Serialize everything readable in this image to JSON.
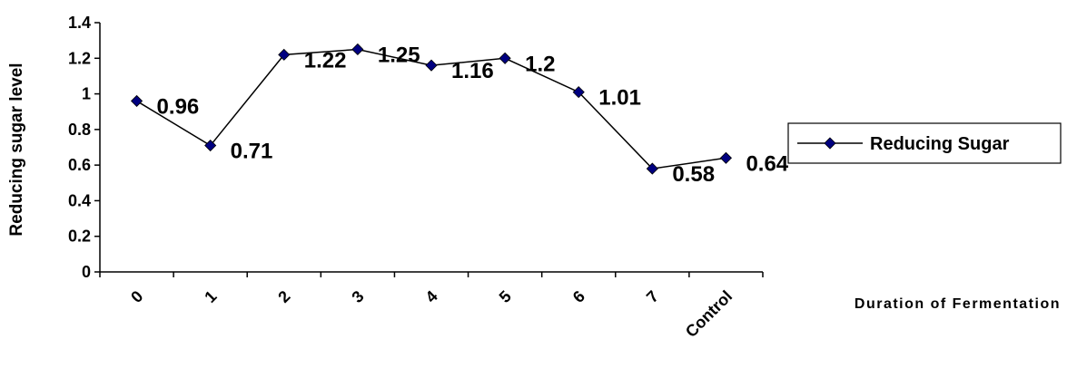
{
  "chart_data": {
    "type": "line",
    "y_label": "Reducing sugar level",
    "x_label": "Duration of Fermentation",
    "categories": [
      "0",
      "1",
      "2",
      "3",
      "4",
      "5",
      "6",
      "7",
      "Control"
    ],
    "series": [
      {
        "name": "Reducing Sugar",
        "color": "#000080",
        "line_color": "#000000",
        "values": [
          0.96,
          0.71,
          1.22,
          1.25,
          1.16,
          1.2,
          1.01,
          0.58,
          0.64
        ]
      }
    ],
    "ylim": [
      0,
      1.4
    ],
    "yticks": [
      0,
      0.2,
      0.4,
      0.6,
      0.8,
      1,
      1.2,
      1.4
    ],
    "grid": false,
    "legend": "right",
    "data_labels": true
  }
}
